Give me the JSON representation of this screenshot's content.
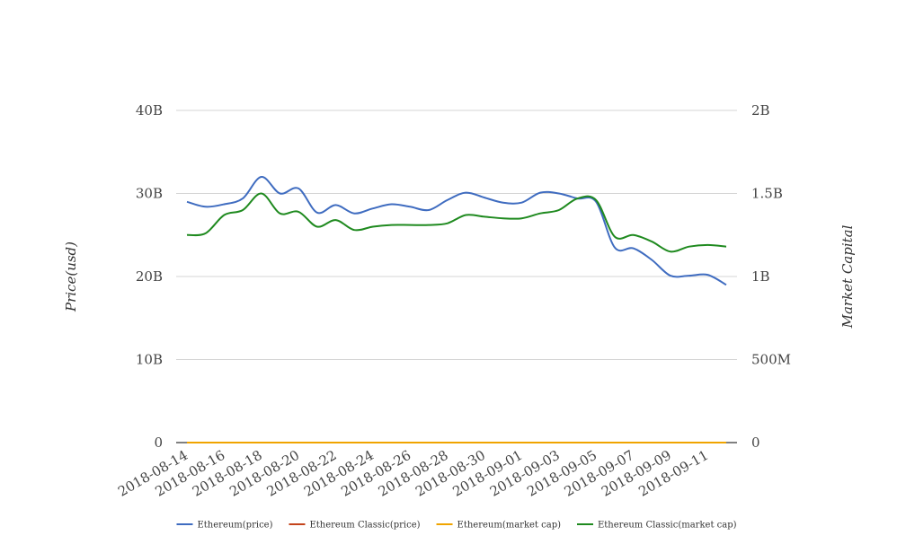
{
  "chart_data": {
    "type": "line",
    "title": "",
    "ylabel_left": "Price(usd)",
    "ylabel_right": "Market Capital",
    "y_left_ticks": [
      "0",
      "10B",
      "20B",
      "30B",
      "40B"
    ],
    "y_right_ticks": [
      "0",
      "500M",
      "1B",
      "1.5B",
      "2B"
    ],
    "ylim_left": [
      0,
      40000000000
    ],
    "ylim_right": [
      0,
      2000000000
    ],
    "x": [
      "2018-08-14",
      "2018-08-15",
      "2018-08-16",
      "2018-08-17",
      "2018-08-18",
      "2018-08-19",
      "2018-08-20",
      "2018-08-21",
      "2018-08-22",
      "2018-08-23",
      "2018-08-24",
      "2018-08-25",
      "2018-08-26",
      "2018-08-27",
      "2018-08-28",
      "2018-08-29",
      "2018-08-30",
      "2018-08-31",
      "2018-09-01",
      "2018-09-02",
      "2018-09-03",
      "2018-09-04",
      "2018-09-05",
      "2018-09-06",
      "2018-09-07",
      "2018-09-08",
      "2018-09-09",
      "2018-09-10",
      "2018-09-11",
      "2018-09-12"
    ],
    "x_tick_labels": [
      "2018-08-14",
      "2018-08-16",
      "2018-08-18",
      "2018-08-20",
      "2018-08-22",
      "2018-08-24",
      "2018-08-26",
      "2018-08-28",
      "2018-08-30",
      "2018-09-01",
      "2018-09-03",
      "2018-09-05",
      "2018-09-07",
      "2018-09-09",
      "2018-09-11"
    ],
    "grid": true,
    "legend_position": "bottom",
    "series": [
      {
        "name": "Ethereum(price)",
        "axis": "left",
        "color": "#3f6cc0",
        "values": [
          29000000000.0,
          28400000000.0,
          28700000000.0,
          29400000000.0,
          32000000000.0,
          30000000000.0,
          30600000000.0,
          27700000000.0,
          28600000000.0,
          27600000000.0,
          28200000000.0,
          28700000000.0,
          28400000000.0,
          28000000000.0,
          29200000000.0,
          30100000000.0,
          29500000000.0,
          28900000000.0,
          28900000000.0,
          30100000000.0,
          30000000000.0,
          29400000000.0,
          29000000000.0,
          23500000000.0,
          23400000000.0,
          22000000000.0,
          20100000000.0,
          20100000000.0,
          20200000000.0,
          19000000000.0
        ]
      },
      {
        "name": "Ethereum Classic(price)",
        "axis": "left",
        "color": "#c4441b",
        "values": [
          0,
          0,
          0,
          0,
          0,
          0,
          0,
          0,
          0,
          0,
          0,
          0,
          0,
          0,
          0,
          0,
          0,
          0,
          0,
          0,
          0,
          0,
          0,
          0,
          0,
          0,
          0,
          0,
          0,
          0
        ]
      },
      {
        "name": "Ethereum(market cap)",
        "axis": "right",
        "color": "#f0a400",
        "values": [
          0,
          0,
          0,
          0,
          0,
          0,
          0,
          0,
          0,
          0,
          0,
          0,
          0,
          0,
          0,
          0,
          0,
          0,
          0,
          0,
          0,
          0,
          0,
          0,
          0,
          0,
          0,
          0,
          0,
          0
        ]
      },
      {
        "name": "Ethereum Classic(market cap)",
        "axis": "right",
        "color": "#1f8a1f",
        "values": [
          1250000000.0,
          1260000000.0,
          1370000000.0,
          1400000000.0,
          1500000000.0,
          1380000000.0,
          1390000000.0,
          1300000000.0,
          1340000000.0,
          1280000000.0,
          1300000000.0,
          1310000000.0,
          1310000000.0,
          1310000000.0,
          1320000000.0,
          1370000000.0,
          1360000000.0,
          1350000000.0,
          1350000000.0,
          1380000000.0,
          1400000000.0,
          1470000000.0,
          1460000000.0,
          1240000000.0,
          1250000000.0,
          1210000000.0,
          1150000000.0,
          1180000000.0,
          1190000000.0,
          1180000000.0
        ]
      }
    ]
  }
}
